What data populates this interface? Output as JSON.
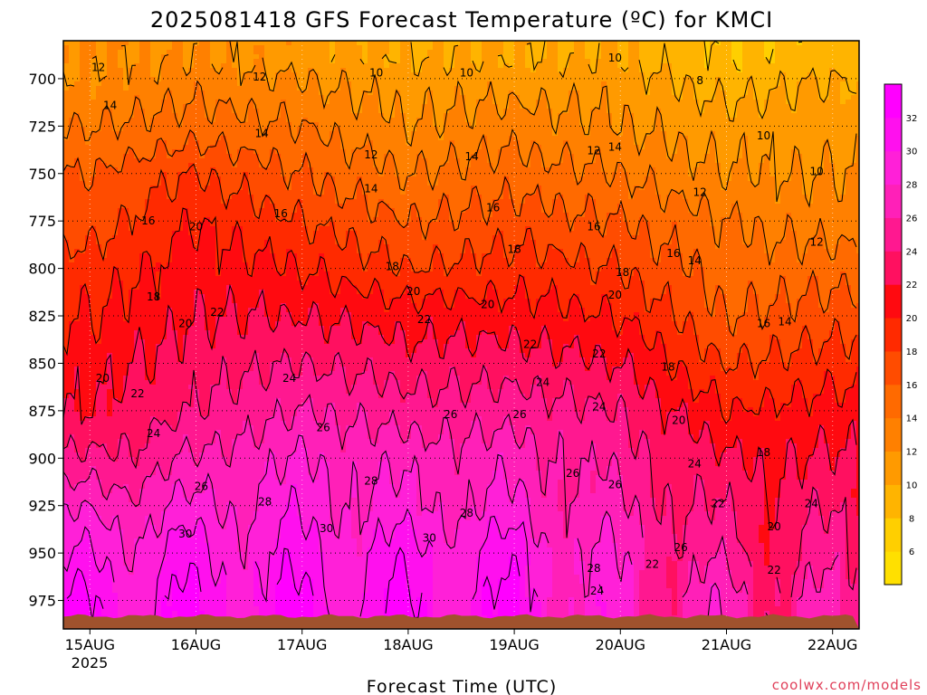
{
  "chart_data": {
    "type": "heatmap",
    "title": "2025081418 GFS Forecast Temperature (ºC) for KMCI",
    "xlabel": "Forecast Time (UTC)",
    "ylabel": "",
    "x_ticks": [
      "15AUG",
      "16AUG",
      "17AUG",
      "18AUG",
      "19AUG",
      "20AUG",
      "21AUG",
      "22AUG"
    ],
    "x_tick_sublabel": "2025",
    "x_start_day": 14.75,
    "x_end_day": 22.25,
    "y_ticks": [
      700,
      725,
      750,
      775,
      800,
      825,
      850,
      875,
      900,
      925,
      950,
      975
    ],
    "y_range_hpa": [
      680,
      990
    ],
    "surface_color": "#a0522d",
    "colorbar": {
      "levels": [
        4,
        6,
        8,
        10,
        12,
        14,
        16,
        18,
        20,
        22,
        24,
        26,
        28,
        30,
        32,
        34
      ],
      "labels": [
        "6",
        "8",
        "10",
        "12",
        "14",
        "16",
        "18",
        "20",
        "22",
        "24",
        "26",
        "28",
        "30",
        "32"
      ],
      "colors": [
        "#ffe000",
        "#ffcf00",
        "#ffb400",
        "#ff9a00",
        "#ff8000",
        "#ff6a00",
        "#ff4c00",
        "#ff2a00",
        "#ff0a10",
        "#ff1060",
        "#ff1890",
        "#ff20b8",
        "#ff20d8",
        "#ff10ee",
        "#ff00ff"
      ]
    },
    "temperature_profiles": [
      {
        "label": "15AUG",
        "levels_hpa": [
          690,
          700,
          725,
          750,
          775,
          800,
          825,
          850,
          875,
          900,
          925,
          950,
          975
        ],
        "temps_c": [
          12,
          12,
          14,
          16,
          17,
          19,
          20,
          21,
          22,
          24,
          27,
          29,
          31
        ]
      },
      {
        "label": "16AUG",
        "levels_hpa": [
          690,
          700,
          725,
          750,
          775,
          800,
          825,
          850,
          875,
          900,
          925,
          950,
          975
        ],
        "temps_c": [
          12,
          13,
          15,
          18,
          20,
          21,
          22,
          23,
          24,
          26,
          28,
          30,
          31
        ]
      },
      {
        "label": "17AUG",
        "levels_hpa": [
          690,
          700,
          725,
          750,
          775,
          800,
          825,
          850,
          875,
          900,
          925,
          950,
          975
        ],
        "temps_c": [
          11,
          12,
          14,
          16,
          18,
          20,
          22,
          24,
          26,
          28,
          29,
          30,
          31
        ]
      },
      {
        "label": "18AUG",
        "levels_hpa": [
          690,
          700,
          725,
          750,
          775,
          800,
          825,
          850,
          875,
          900,
          925,
          950,
          975
        ],
        "temps_c": [
          10,
          11,
          12,
          14,
          16,
          18,
          21,
          23,
          25,
          27,
          28,
          30,
          31
        ]
      },
      {
        "label": "19AUG",
        "levels_hpa": [
          690,
          700,
          725,
          750,
          775,
          800,
          825,
          850,
          875,
          900,
          925,
          950,
          975
        ],
        "temps_c": [
          10,
          11,
          13,
          15,
          17,
          19,
          21,
          23,
          25,
          27,
          28,
          30,
          31
        ]
      },
      {
        "label": "20AUG",
        "levels_hpa": [
          690,
          700,
          725,
          750,
          775,
          800,
          825,
          850,
          875,
          900,
          925,
          950,
          975
        ],
        "temps_c": [
          10,
          11,
          12,
          14,
          16,
          18,
          20,
          22,
          24,
          25,
          26,
          27,
          27
        ]
      },
      {
        "label": "21AUG",
        "levels_hpa": [
          690,
          700,
          725,
          750,
          775,
          800,
          825,
          850,
          875,
          900,
          925,
          950,
          975
        ],
        "temps_c": [
          8,
          9,
          11,
          12,
          14,
          15,
          16,
          18,
          20,
          22,
          23,
          24,
          26
        ]
      },
      {
        "label": "22AUG",
        "levels_hpa": [
          690,
          700,
          725,
          750,
          775,
          800,
          825,
          850,
          875,
          900,
          925,
          950,
          975
        ],
        "temps_c": [
          9,
          10,
          11,
          12,
          13,
          15,
          17,
          19,
          21,
          22,
          23,
          24,
          25
        ]
      }
    ],
    "contour_labels": [
      {
        "text": "12",
        "day": 15.08,
        "hpa": 694
      },
      {
        "text": "14",
        "day": 15.19,
        "hpa": 714
      },
      {
        "text": "16",
        "day": 15.55,
        "hpa": 775
      },
      {
        "text": "18",
        "day": 15.6,
        "hpa": 815
      },
      {
        "text": "20",
        "day": 16.0,
        "hpa": 778
      },
      {
        "text": "20",
        "day": 15.9,
        "hpa": 829
      },
      {
        "text": "22",
        "day": 16.2,
        "hpa": 823
      },
      {
        "text": "20",
        "day": 15.12,
        "hpa": 858
      },
      {
        "text": "22",
        "day": 15.45,
        "hpa": 866
      },
      {
        "text": "24",
        "day": 15.6,
        "hpa": 887
      },
      {
        "text": "26",
        "day": 16.05,
        "hpa": 915
      },
      {
        "text": "28",
        "day": 16.65,
        "hpa": 923
      },
      {
        "text": "30",
        "day": 15.9,
        "hpa": 940
      },
      {
        "text": "12",
        "day": 16.6,
        "hpa": 699
      },
      {
        "text": "14",
        "day": 16.62,
        "hpa": 729
      },
      {
        "text": "16",
        "day": 16.8,
        "hpa": 771
      },
      {
        "text": "24",
        "day": 16.88,
        "hpa": 858
      },
      {
        "text": "26",
        "day": 17.2,
        "hpa": 884
      },
      {
        "text": "28",
        "day": 17.65,
        "hpa": 912
      },
      {
        "text": "30",
        "day": 17.23,
        "hpa": 937
      },
      {
        "text": "10",
        "day": 17.7,
        "hpa": 697
      },
      {
        "text": "12",
        "day": 17.65,
        "hpa": 740
      },
      {
        "text": "14",
        "day": 17.65,
        "hpa": 758
      },
      {
        "text": "18",
        "day": 17.85,
        "hpa": 799
      },
      {
        "text": "20",
        "day": 18.05,
        "hpa": 812
      },
      {
        "text": "22",
        "day": 18.15,
        "hpa": 827
      },
      {
        "text": "26",
        "day": 18.4,
        "hpa": 877
      },
      {
        "text": "28",
        "day": 18.55,
        "hpa": 929
      },
      {
        "text": "30",
        "day": 18.2,
        "hpa": 942
      },
      {
        "text": "10",
        "day": 18.55,
        "hpa": 697
      },
      {
        "text": "14",
        "day": 18.6,
        "hpa": 741
      },
      {
        "text": "16",
        "day": 18.8,
        "hpa": 768
      },
      {
        "text": "18",
        "day": 19.0,
        "hpa": 790
      },
      {
        "text": "20",
        "day": 18.75,
        "hpa": 819
      },
      {
        "text": "22",
        "day": 19.15,
        "hpa": 840
      },
      {
        "text": "24",
        "day": 19.27,
        "hpa": 860
      },
      {
        "text": "26",
        "day": 19.05,
        "hpa": 877
      },
      {
        "text": "26",
        "day": 19.55,
        "hpa": 908
      },
      {
        "text": "12",
        "day": 19.75,
        "hpa": 738
      },
      {
        "text": "14",
        "day": 19.95,
        "hpa": 736
      },
      {
        "text": "10",
        "day": 19.95,
        "hpa": 689
      },
      {
        "text": "16",
        "day": 19.75,
        "hpa": 778
      },
      {
        "text": "18",
        "day": 20.02,
        "hpa": 802
      },
      {
        "text": "20",
        "day": 19.95,
        "hpa": 814
      },
      {
        "text": "22",
        "day": 19.8,
        "hpa": 845
      },
      {
        "text": "24",
        "day": 19.8,
        "hpa": 873
      },
      {
        "text": "26",
        "day": 19.95,
        "hpa": 914
      },
      {
        "text": "28",
        "day": 19.75,
        "hpa": 958
      },
      {
        "text": "24",
        "day": 19.78,
        "hpa": 970
      },
      {
        "text": "8",
        "day": 20.75,
        "hpa": 701
      },
      {
        "text": "16",
        "day": 20.5,
        "hpa": 792
      },
      {
        "text": "14",
        "day": 20.7,
        "hpa": 796
      },
      {
        "text": "18",
        "day": 20.45,
        "hpa": 852
      },
      {
        "text": "20",
        "day": 20.55,
        "hpa": 880
      },
      {
        "text": "24",
        "day": 20.7,
        "hpa": 903
      },
      {
        "text": "22",
        "day": 20.92,
        "hpa": 924
      },
      {
        "text": "26",
        "day": 20.57,
        "hpa": 947
      },
      {
        "text": "22",
        "day": 20.3,
        "hpa": 956
      },
      {
        "text": "12",
        "day": 20.75,
        "hpa": 760
      },
      {
        "text": "10",
        "day": 21.35,
        "hpa": 730
      },
      {
        "text": "10",
        "day": 21.85,
        "hpa": 749
      },
      {
        "text": "12",
        "day": 21.85,
        "hpa": 786
      },
      {
        "text": "16",
        "day": 21.35,
        "hpa": 829
      },
      {
        "text": "14",
        "day": 21.55,
        "hpa": 828
      },
      {
        "text": "18",
        "day": 21.35,
        "hpa": 897
      },
      {
        "text": "20",
        "day": 21.45,
        "hpa": 936
      },
      {
        "text": "22",
        "day": 21.45,
        "hpa": 959
      },
      {
        "text": "24",
        "day": 21.8,
        "hpa": 924
      }
    ]
  },
  "credit": "coolwx.com/models"
}
